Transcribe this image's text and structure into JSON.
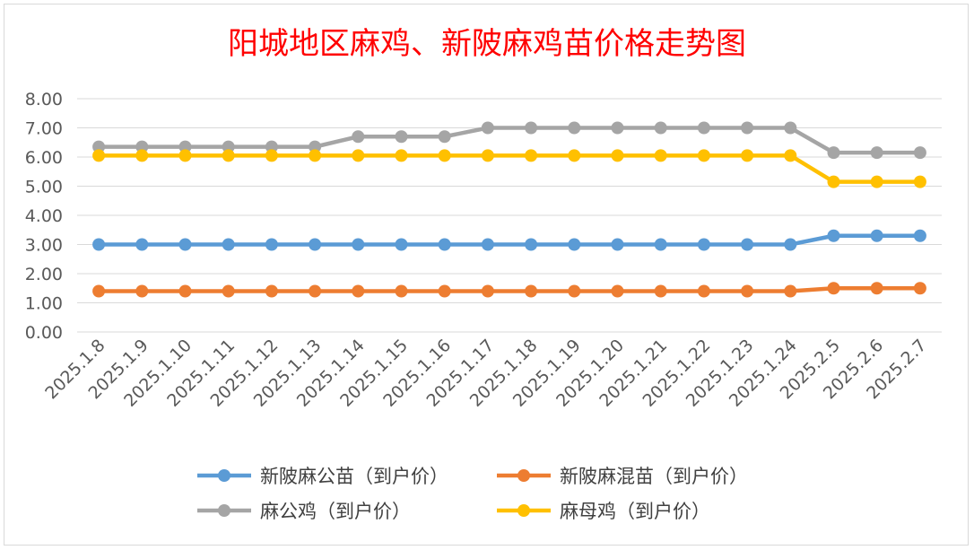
{
  "chart_data": {
    "type": "line",
    "title": "阳城地区麻鸡、新陂麻鸡苗价格走势图",
    "xlabel": "",
    "ylabel": "",
    "ylim": [
      0,
      8
    ],
    "yticks": [
      "0.00",
      "1.00",
      "2.00",
      "3.00",
      "4.00",
      "5.00",
      "6.00",
      "7.00",
      "8.00"
    ],
    "grid": true,
    "legend_position": "bottom",
    "categories": [
      "2025.1.8",
      "2025.1.9",
      "2025.1.10",
      "2025.1.11",
      "2025.1.12",
      "2025.1.13",
      "2025.1.14",
      "2025.1.15",
      "2025.1.16",
      "2025.1.17",
      "2025.1.18",
      "2025.1.19",
      "2025.1.20",
      "2025.1.21",
      "2025.1.22",
      "2025.1.23",
      "2025.1.24",
      "2025.2.5",
      "2025.2.6",
      "2025.2.7"
    ],
    "series": [
      {
        "name": "新陂麻公苗（到户价）",
        "color": "#5b9bd5",
        "values": [
          3.0,
          3.0,
          3.0,
          3.0,
          3.0,
          3.0,
          3.0,
          3.0,
          3.0,
          3.0,
          3.0,
          3.0,
          3.0,
          3.0,
          3.0,
          3.0,
          3.0,
          3.3,
          3.3,
          3.3
        ]
      },
      {
        "name": "新陂麻混苗（到户价）",
        "color": "#ed7d31",
        "values": [
          1.4,
          1.4,
          1.4,
          1.4,
          1.4,
          1.4,
          1.4,
          1.4,
          1.4,
          1.4,
          1.4,
          1.4,
          1.4,
          1.4,
          1.4,
          1.4,
          1.4,
          1.5,
          1.5,
          1.5
        ]
      },
      {
        "name": "麻公鸡（到户价）",
        "color": "#a5a5a5",
        "values": [
          6.35,
          6.35,
          6.35,
          6.35,
          6.35,
          6.35,
          6.7,
          6.7,
          6.7,
          7.0,
          7.0,
          7.0,
          7.0,
          7.0,
          7.0,
          7.0,
          7.0,
          6.15,
          6.15,
          6.15
        ]
      },
      {
        "name": "麻母鸡（到户价）",
        "color": "#ffc000",
        "values": [
          6.05,
          6.05,
          6.05,
          6.05,
          6.05,
          6.05,
          6.05,
          6.05,
          6.05,
          6.05,
          6.05,
          6.05,
          6.05,
          6.05,
          6.05,
          6.05,
          6.05,
          5.15,
          5.15,
          5.15
        ]
      }
    ]
  }
}
